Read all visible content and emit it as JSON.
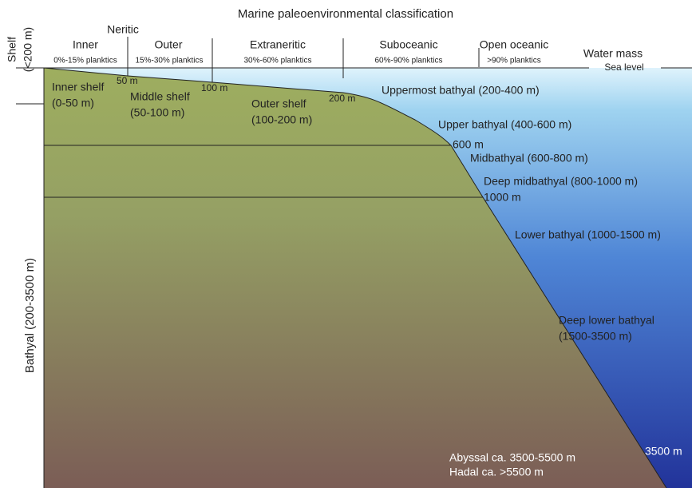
{
  "title": "Marine paleoenvironmental classification",
  "header": {
    "neritic": "Neritic",
    "zones": [
      {
        "name": "Inner",
        "planktics": "0%-15% planktics"
      },
      {
        "name": "Outer",
        "planktics": "15%-30% planktics"
      },
      {
        "name": "Extraneritic",
        "planktics": "30%-60% planktics"
      },
      {
        "name": "Suboceanic",
        "planktics": "60%-90% planktics"
      },
      {
        "name": "Open oceanic",
        "planktics": ">90% planktics"
      }
    ],
    "water_mass": "Water mass",
    "sea_level": "Sea level"
  },
  "left": {
    "shelf": "Shelf",
    "shelf_depth": "(<200 m)",
    "bathyal": "Bathyal (200-3500 m)"
  },
  "shelf_zones": [
    {
      "name": "Inner shelf",
      "range": "(0-50 m)"
    },
    {
      "name": "Middle shelf",
      "range": "(50-100 m)"
    },
    {
      "name": "Outer shelf",
      "range": "(100-200 m)"
    }
  ],
  "depth_marks": [
    "50 m",
    "100 m",
    "200 m",
    "600 m",
    "1000 m",
    "3500 m"
  ],
  "bathyal_zones": [
    "Uppermost bathyal (200-400 m)",
    "Upper bathyal (400-600 m)",
    "Midbathyal (600-800 m)",
    "Deep midbathyal (800-1000 m)",
    "Lower bathyal (1000-1500 m)"
  ],
  "deep_lower_bathyal": {
    "name": "Deep lower bathyal",
    "range": "(1500-3500 m)"
  },
  "abyssal": "Abyssal ca. 3500-5500 m",
  "hadal": "Hadal ca. >5500 m"
}
